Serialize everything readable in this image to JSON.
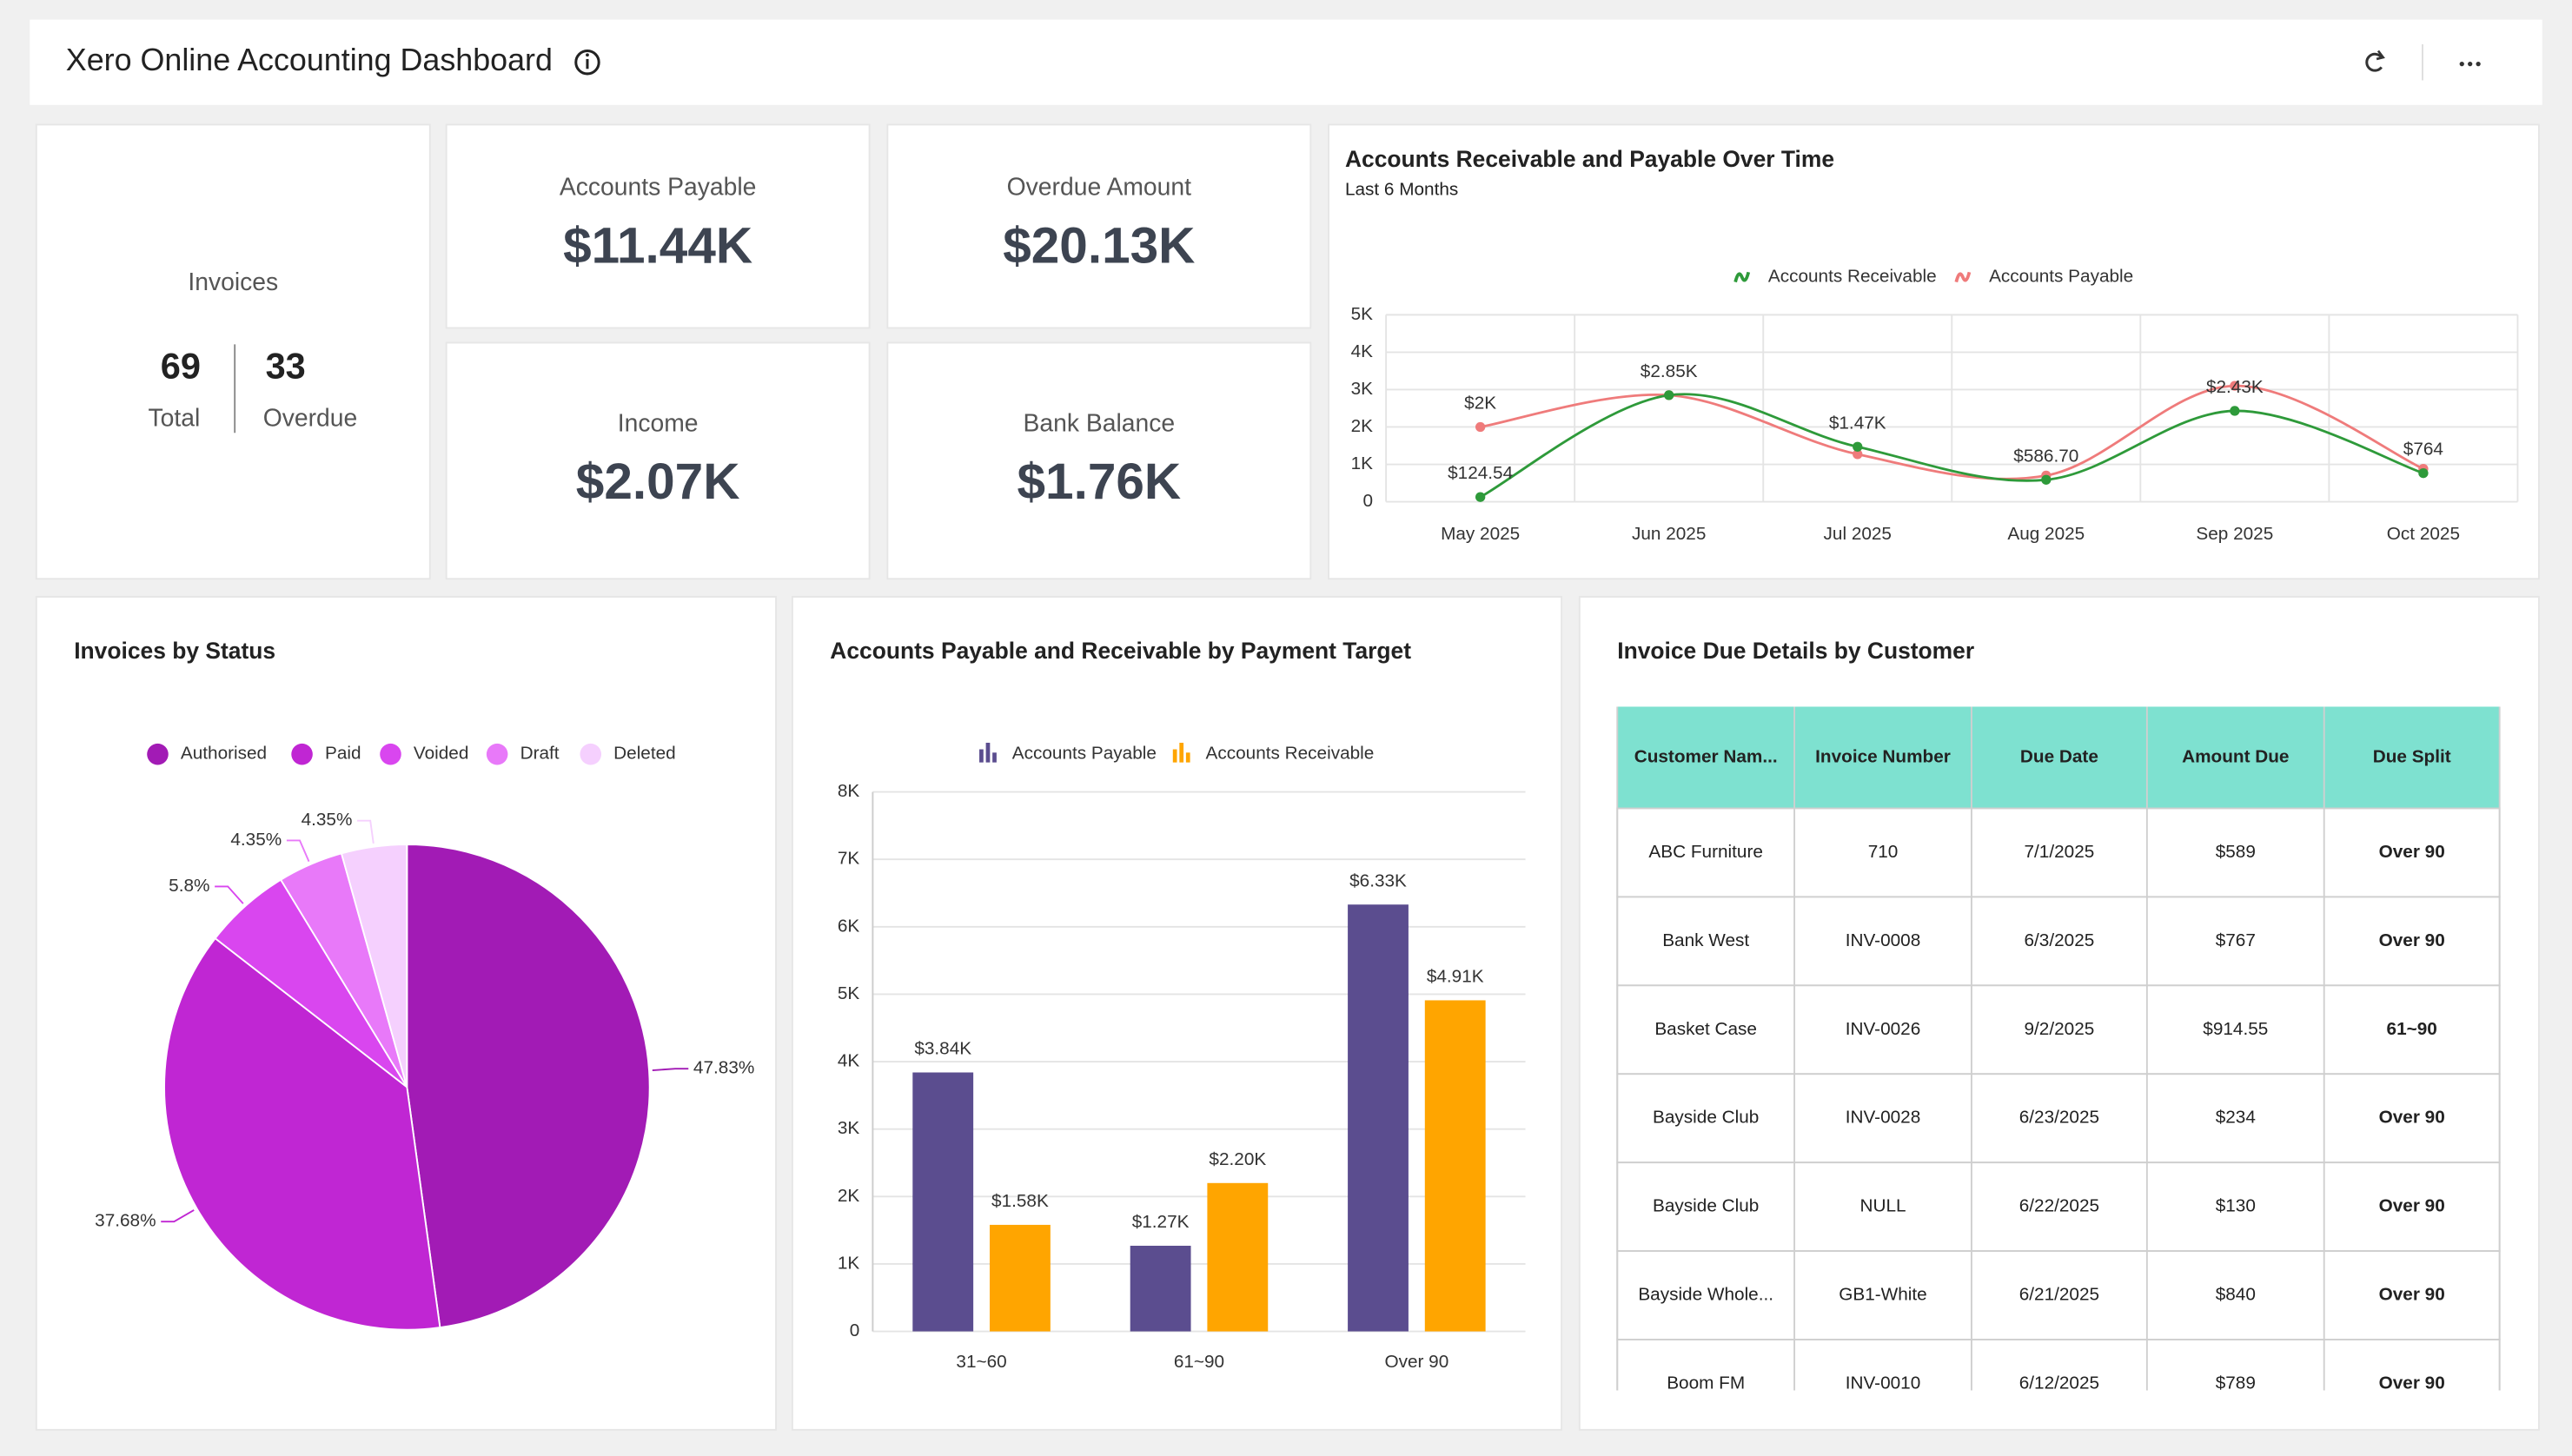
{
  "header": {
    "title": "Xero Online Accounting Dashboard"
  },
  "invoices": {
    "title": "Invoices",
    "total": 69,
    "total_label": "Total",
    "overdue": 33,
    "overdue_label": "Overdue"
  },
  "kpis": [
    {
      "label": "Accounts Payable",
      "value": "$11.44K"
    },
    {
      "label": "Overdue Amount",
      "value": "$20.13K"
    },
    {
      "label": "Income",
      "value": "$2.07K"
    },
    {
      "label": "Bank Balance",
      "value": "$1.76K"
    }
  ],
  "chart_data": [
    {
      "type": "line",
      "title": "Accounts Receivable and Payable Over Time",
      "subtitle": "Last 6 Months",
      "categories": [
        "May 2025",
        "Jun 2025",
        "Jul 2025",
        "Aug 2025",
        "Sep 2025",
        "Oct 2025"
      ],
      "series": [
        {
          "name": "Accounts Receivable",
          "color": "#2e9a3a",
          "values": [
            124.54,
            2850,
            1470,
            586.7,
            2430,
            764
          ],
          "value_labels": [
            "$124.54",
            "$2.85K",
            "$1.47K",
            "$586.70",
            "$2.43K",
            "$764"
          ]
        },
        {
          "name": "Accounts Payable",
          "color": "#ef7b7b",
          "values": [
            2000,
            2850,
            1270,
            700,
            3100,
            880
          ],
          "value_labels": [
            "$2K",
            null,
            null,
            null,
            null,
            null
          ]
        }
      ],
      "ylim": [
        0,
        5000
      ],
      "yticks": [
        0,
        {
          "value": 1000,
          "label": "1K"
        },
        {
          "value": 2000,
          "label": "2K"
        },
        {
          "value": 3000,
          "label": "3K"
        },
        {
          "value": 4000,
          "label": "4K"
        },
        {
          "value": 5000,
          "label": "5K"
        }
      ],
      "grid": true
    },
    {
      "type": "pie",
      "title": "Invoices by Status",
      "categories": [
        "Authorised",
        "Paid",
        "Voided",
        "Draft",
        "Deleted"
      ],
      "values": [
        47.83,
        37.68,
        5.8,
        4.35,
        4.35
      ],
      "value_labels": [
        "47.83%",
        "37.68%",
        "5.8%",
        "4.35%",
        "4.35%"
      ],
      "colors": [
        "#a21bb5",
        "#c026d3",
        "#d946ef",
        "#e879f9",
        "#f5d0fe"
      ]
    },
    {
      "type": "bar",
      "title": "Accounts Payable and Receivable by Payment Target",
      "categories": [
        "31~60",
        "61~90",
        "Over 90"
      ],
      "series": [
        {
          "name": "Accounts Payable",
          "color": "#5b4d8f",
          "values": [
            3840,
            1270,
            6330
          ],
          "value_labels": [
            "$3.84K",
            "$1.27K",
            "$6.33K"
          ]
        },
        {
          "name": "Accounts Receivable",
          "color": "#ffa500",
          "values": [
            1580,
            2200,
            4910
          ],
          "value_labels": [
            "$1.58K",
            "$2.20K",
            "$4.91K"
          ]
        }
      ],
      "ylim": [
        0,
        8000
      ],
      "yticks": [
        0,
        {
          "value": 1000,
          "label": "1K"
        },
        {
          "value": 2000,
          "label": "2K"
        },
        {
          "value": 3000,
          "label": "3K"
        },
        {
          "value": 4000,
          "label": "4K"
        },
        {
          "value": 5000,
          "label": "5K"
        },
        {
          "value": 6000,
          "label": "6K"
        },
        {
          "value": 7000,
          "label": "7K"
        },
        {
          "value": 8000,
          "label": "8K"
        }
      ],
      "grid": true
    }
  ],
  "table": {
    "title": "Invoice Due Details by Customer",
    "columns": [
      "Customer Nam...",
      "Invoice Number",
      "Due Date",
      "Amount Due",
      "Due Split"
    ],
    "rows": [
      [
        "ABC Furniture",
        "710",
        "7/1/2025",
        "$589",
        "Over 90"
      ],
      [
        "Bank West",
        "INV-0008",
        "6/3/2025",
        "$767",
        "Over 90"
      ],
      [
        "Basket Case",
        "INV-0026",
        "9/2/2025",
        "$914.55",
        "61~90"
      ],
      [
        "Bayside Club",
        "INV-0028",
        "6/23/2025",
        "$234",
        "Over 90"
      ],
      [
        "Bayside Club",
        "NULL",
        "6/22/2025",
        "$130",
        "Over 90"
      ],
      [
        "Bayside Whole...",
        "GB1-White",
        "6/21/2025",
        "$840",
        "Over 90"
      ],
      [
        "Boom FM",
        "INV-0010",
        "6/12/2025",
        "$789",
        "Over 90"
      ]
    ]
  }
}
